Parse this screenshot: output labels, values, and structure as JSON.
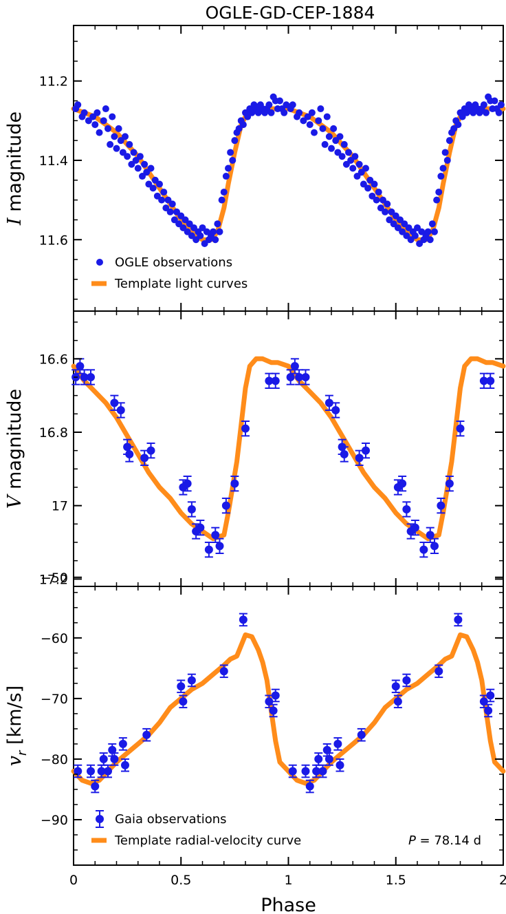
{
  "title": "OGLE-GD-CEP-1884",
  "colors": {
    "observations": "#1a1ae6",
    "template": "#ff8c1a",
    "axes": "#000000"
  },
  "chart_data": [
    {
      "type": "scatter",
      "panel": "I-band light curve",
      "ylabel_italic": "I",
      "ylabel_rest": " magnitude",
      "ylim": [
        11.78,
        11.06
      ],
      "y_ticks": [
        11.2,
        11.4,
        11.6
      ],
      "y_tick_labels": [
        "11.2",
        "11.4",
        "11.6"
      ],
      "xlim": [
        0,
        2
      ],
      "legend": [
        {
          "kind": "points",
          "label": "OGLE observations"
        },
        {
          "kind": "line",
          "label": "Template light curves"
        }
      ],
      "template": {
        "x": [
          0,
          0.05,
          0.1,
          0.15,
          0.2,
          0.25,
          0.3,
          0.35,
          0.4,
          0.45,
          0.5,
          0.55,
          0.6,
          0.64,
          0.67,
          0.7,
          0.72,
          0.75,
          0.78,
          0.82,
          0.86,
          0.9,
          0.95,
          1.0
        ],
        "y": [
          11.27,
          11.28,
          11.29,
          11.31,
          11.33,
          11.36,
          11.39,
          11.43,
          11.47,
          11.51,
          11.55,
          11.58,
          11.6,
          11.6,
          11.58,
          11.52,
          11.46,
          11.38,
          11.31,
          11.27,
          11.27,
          11.27,
          11.27,
          11.27
        ]
      },
      "series": [
        {
          "name": "OGLE observations",
          "x": [
            0.01,
            0.02,
            0.04,
            0.05,
            0.07,
            0.09,
            0.1,
            0.11,
            0.12,
            0.14,
            0.15,
            0.16,
            0.17,
            0.18,
            0.19,
            0.2,
            0.21,
            0.22,
            0.23,
            0.24,
            0.25,
            0.26,
            0.27,
            0.28,
            0.29,
            0.3,
            0.31,
            0.32,
            0.33,
            0.34,
            0.35,
            0.36,
            0.37,
            0.38,
            0.39,
            0.4,
            0.41,
            0.42,
            0.43,
            0.44,
            0.45,
            0.46,
            0.47,
            0.48,
            0.49,
            0.5,
            0.51,
            0.52,
            0.53,
            0.54,
            0.55,
            0.56,
            0.57,
            0.58,
            0.59,
            0.6,
            0.61,
            0.62,
            0.63,
            0.64,
            0.65,
            0.66,
            0.67,
            0.68,
            0.69,
            0.7,
            0.71,
            0.72,
            0.73,
            0.74,
            0.75,
            0.76,
            0.77,
            0.78,
            0.79,
            0.8,
            0.81,
            0.82,
            0.83,
            0.84,
            0.85,
            0.86,
            0.87,
            0.88,
            0.89,
            0.9,
            0.91,
            0.92,
            0.93,
            0.94,
            0.95,
            0.96,
            0.97,
            0.98,
            0.99
          ],
          "y": [
            11.27,
            11.26,
            11.29,
            11.28,
            11.3,
            11.29,
            11.31,
            11.28,
            11.33,
            11.3,
            11.27,
            11.32,
            11.36,
            11.29,
            11.34,
            11.37,
            11.32,
            11.35,
            11.38,
            11.34,
            11.39,
            11.36,
            11.41,
            11.38,
            11.4,
            11.42,
            11.39,
            11.44,
            11.41,
            11.43,
            11.46,
            11.42,
            11.47,
            11.45,
            11.49,
            11.46,
            11.5,
            11.48,
            11.52,
            11.5,
            11.53,
            11.51,
            11.55,
            11.53,
            11.56,
            11.54,
            11.57,
            11.55,
            11.58,
            11.56,
            11.59,
            11.57,
            11.6,
            11.58,
            11.59,
            11.57,
            11.61,
            11.58,
            11.6,
            11.59,
            11.58,
            11.6,
            11.56,
            11.58,
            11.5,
            11.48,
            11.44,
            11.42,
            11.38,
            11.4,
            11.35,
            11.33,
            11.32,
            11.3,
            11.31,
            11.28,
            11.29,
            11.27,
            11.28,
            11.26,
            11.27,
            11.28,
            11.26,
            11.27,
            11.28,
            11.27,
            11.26,
            11.28,
            11.24,
            11.25,
            11.27,
            11.25,
            11.27,
            11.28,
            11.26
          ]
        }
      ]
    },
    {
      "type": "scatter",
      "panel": "V-band light curve",
      "ylabel_italic": "V",
      "ylabel_rest": " magnitude",
      "ylim": [
        17.22,
        16.47
      ],
      "y_ticks": [
        16.6,
        16.8,
        17.0,
        17.2
      ],
      "y_tick_labels": [
        "16.6",
        "16.8",
        "17",
        "17.2"
      ],
      "xlim": [
        0,
        2
      ],
      "template": {
        "x": [
          0,
          0.05,
          0.1,
          0.15,
          0.2,
          0.25,
          0.3,
          0.35,
          0.4,
          0.45,
          0.5,
          0.55,
          0.6,
          0.65,
          0.7,
          0.72,
          0.74,
          0.76,
          0.78,
          0.8,
          0.82,
          0.85,
          0.88,
          0.92,
          0.95,
          1.0
        ],
        "y": [
          16.62,
          16.66,
          16.69,
          16.72,
          16.76,
          16.81,
          16.86,
          16.91,
          16.95,
          16.98,
          17.02,
          17.05,
          17.07,
          17.09,
          17.08,
          17.02,
          16.95,
          16.88,
          16.78,
          16.68,
          16.62,
          16.6,
          16.6,
          16.61,
          16.61,
          16.62
        ]
      },
      "series": [
        {
          "name": "Gaia observations",
          "x": [
            0.01,
            0.03,
            0.05,
            0.08,
            0.19,
            0.22,
            0.25,
            0.26,
            0.33,
            0.36,
            0.51,
            0.53,
            0.55,
            0.57,
            0.59,
            0.63,
            0.66,
            0.68,
            0.71,
            0.75,
            0.8,
            0.91,
            0.94
          ],
          "y": [
            16.65,
            16.62,
            16.65,
            16.65,
            16.72,
            16.74,
            16.84,
            16.86,
            16.87,
            16.85,
            16.95,
            16.94,
            17.01,
            17.07,
            17.06,
            17.12,
            17.08,
            17.11,
            17.0,
            16.94,
            16.79,
            16.66,
            16.66
          ],
          "err": 0.02
        }
      ]
    },
    {
      "type": "scatter",
      "panel": "Radial-velocity curve",
      "ylabel_italic": "v",
      "ylabel_sub": "r",
      "ylabel_rest": " [km/s]",
      "ylim": [
        -97.5,
        -51.5
      ],
      "y_ticks": [
        -50,
        -60,
        -70,
        -80,
        -90
      ],
      "y_tick_labels": [
        "−50",
        "−60",
        "−70",
        "−80",
        "−90"
      ],
      "xlabel": "Phase",
      "x_ticks": [
        0,
        0.5,
        1,
        1.5,
        2
      ],
      "x_tick_labels": [
        "0",
        "0.5",
        "1",
        "1.5",
        "2"
      ],
      "xlim": [
        0,
        2
      ],
      "legend": [
        {
          "kind": "errpoint",
          "label": "Gaia observations"
        },
        {
          "kind": "line",
          "label": "Template radial-velocity curve"
        }
      ],
      "annotation": {
        "italic": "P",
        "text": " = 78.14 d"
      },
      "template": {
        "x": [
          0,
          0.04,
          0.08,
          0.12,
          0.16,
          0.2,
          0.25,
          0.3,
          0.35,
          0.4,
          0.45,
          0.5,
          0.55,
          0.6,
          0.65,
          0.7,
          0.73,
          0.76,
          0.8,
          0.83,
          0.86,
          0.88,
          0.9,
          0.92,
          0.94,
          0.96,
          1.0
        ],
        "y": [
          -82.0,
          -83.5,
          -84.0,
          -83.5,
          -82.0,
          -80.5,
          -79.0,
          -77.5,
          -76.0,
          -74.0,
          -71.5,
          -70.0,
          -68.5,
          -67.5,
          -66.0,
          -64.5,
          -63.5,
          -63.0,
          -59.5,
          -59.8,
          -62.0,
          -64.0,
          -67.0,
          -72.0,
          -77.0,
          -80.5,
          -82.0
        ]
      },
      "series": [
        {
          "name": "Gaia observations",
          "x": [
            0.02,
            0.08,
            0.1,
            0.13,
            0.14,
            0.16,
            0.18,
            0.19,
            0.23,
            0.24,
            0.34,
            0.5,
            0.51,
            0.55,
            0.7,
            0.79,
            0.91,
            0.93,
            0.94
          ],
          "y": [
            -82.0,
            -82.0,
            -84.5,
            -82.0,
            -80.0,
            -82.0,
            -78.5,
            -80.0,
            -77.5,
            -81.0,
            -76.0,
            -68.0,
            -70.5,
            -67.0,
            -65.5,
            -57.0,
            -70.5,
            -72.0,
            -69.5
          ],
          "err": 1.0
        }
      ]
    }
  ]
}
